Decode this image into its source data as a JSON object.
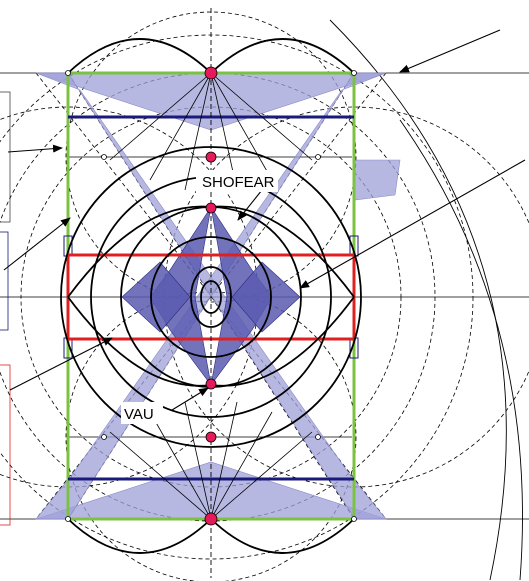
{
  "labels": {
    "shofear": "SHOFEAR",
    "vau": "VAU"
  },
  "colors": {
    "background": "#ffffff",
    "green_frame": "#7cc242",
    "blue_band": "#1a1a7a",
    "red_band": "#e02020",
    "lavender_fill": "#9fa0d8",
    "violet_fill": "#5a5ab0",
    "node_fill": "#e6195a",
    "circle_stroke": "#000000"
  },
  "icons": {
    "node": "red-dot",
    "pointer": "arrow"
  }
}
